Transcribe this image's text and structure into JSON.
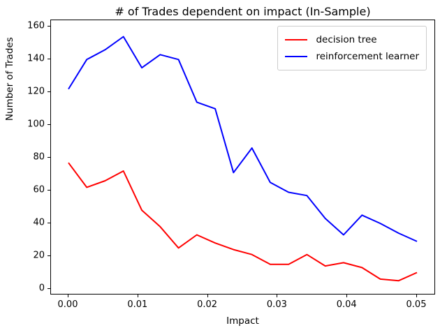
{
  "figure": {
    "title": "# of Trades dependent on impact (In-Sample)",
    "xlabel": "Impact",
    "ylabel": "Number of Trades",
    "background_color": "#ffffff",
    "spine_color": "#000000"
  },
  "chart_data": {
    "type": "line",
    "title": "# of Trades dependent on impact (In-Sample)",
    "xlabel": "Impact",
    "ylabel": "Number of Trades",
    "grid": false,
    "xlim": [
      -0.0025,
      0.0525
    ],
    "ylim": [
      -3,
      164
    ],
    "x_ticks": [
      0.0,
      0.01,
      0.02,
      0.03,
      0.04,
      0.05
    ],
    "x_tick_labels": [
      "0.00",
      "0.01",
      "0.02",
      "0.03",
      "0.04",
      "0.05"
    ],
    "y_ticks": [
      0,
      20,
      40,
      60,
      80,
      100,
      120,
      140,
      160
    ],
    "y_tick_labels": [
      "0",
      "20",
      "40",
      "60",
      "80",
      "100",
      "120",
      "140",
      "160"
    ],
    "x": [
      0.0,
      0.00263,
      0.00526,
      0.00789,
      0.01053,
      0.01316,
      0.01579,
      0.01842,
      0.02105,
      0.02368,
      0.02632,
      0.02895,
      0.03158,
      0.03421,
      0.03684,
      0.03947,
      0.04211,
      0.04474,
      0.04737,
      0.05
    ],
    "series": [
      {
        "name": "decision tree",
        "color": "#ff0000",
        "values": [
          77,
          62,
          66,
          72,
          48,
          38,
          25,
          33,
          28,
          24,
          21,
          15,
          15,
          21,
          14,
          16,
          13,
          6,
          5,
          10
        ]
      },
      {
        "name": "reinforcement learner",
        "color": "#0000ff",
        "values": [
          122,
          140,
          146,
          154,
          135,
          143,
          140,
          114,
          110,
          71,
          86,
          65,
          59,
          57,
          43,
          33,
          45,
          40,
          34,
          29
        ]
      }
    ],
    "legend": {
      "position": "upper right",
      "entries": [
        "decision tree",
        "reinforcement learner"
      ]
    }
  }
}
